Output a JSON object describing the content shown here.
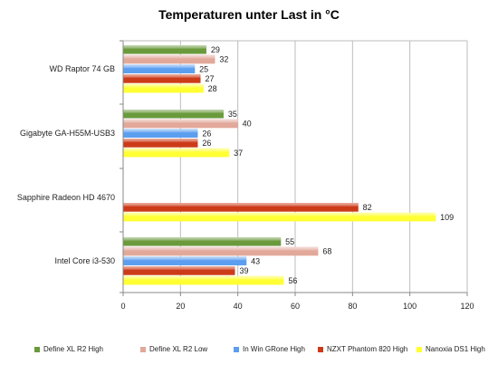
{
  "chart_data": {
    "type": "bar",
    "orientation": "horizontal",
    "title": "Temperaturen unter Last in °C",
    "xlabel": "",
    "ylabel": "",
    "categories": [
      "WD Raptor 74 GB",
      "Gigabyte GA-H55M-USB3",
      "Sapphire Radeon HD 4670",
      "Intel Core i3-530"
    ],
    "series": [
      {
        "name": "Define XL R2 High",
        "color": "#6a9a3c",
        "values": [
          29,
          35,
          null,
          55
        ]
      },
      {
        "name": "Define XL R2 Low",
        "color": "#e2a89a",
        "values": [
          32,
          40,
          null,
          68
        ]
      },
      {
        "name": "In Win GRone High",
        "color": "#5b9ef0",
        "values": [
          25,
          26,
          null,
          43
        ]
      },
      {
        "name": "NZXT Phantom 820 High",
        "color": "#cc3a18",
        "values": [
          27,
          26,
          82,
          39
        ]
      },
      {
        "name": "Nanoxia DS1 High",
        "color": "#ffff33",
        "values": [
          28,
          37,
          109,
          56
        ]
      }
    ],
    "xlim": [
      0,
      120
    ],
    "xticks": [
      0,
      20,
      40,
      60,
      80,
      100,
      120
    ],
    "grid": true,
    "legend_position": "bottom"
  }
}
